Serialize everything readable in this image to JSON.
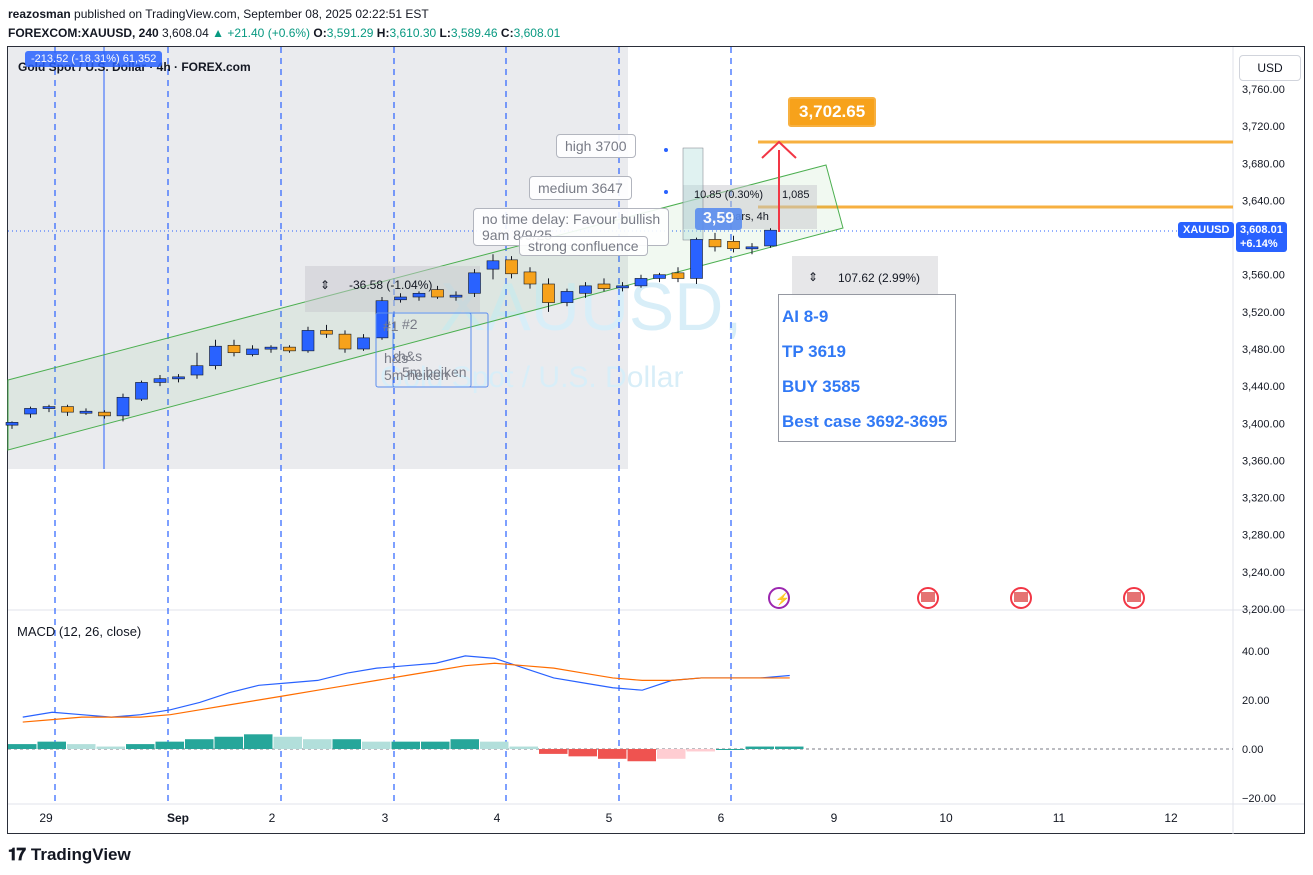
{
  "header": {
    "user": "reazosman",
    "published": "published on TradingView.com, September 08, 2025 02:22:51 EST",
    "symbol": "FOREXCOM:XAUUSD, 240",
    "price": "3,608.04",
    "change": "▲ +21.40 (+0.6%)",
    "o_label": "O:",
    "o": "3,591.29",
    "h_label": "H:",
    "h": "3,610.30",
    "l_label": "L:",
    "l": "3,589.46",
    "c_label": "C:",
    "c": "3,608.01"
  },
  "legend": {
    "title": "Gold Spot / U.S. Dollar · 4h · FOREX.com",
    "measure_label": "-213.52 (-18.31%) 61,352"
  },
  "watermark": {
    "symbol": "XAUUSD,",
    "name": "Gold Spot / U.S. Dollar"
  },
  "currency_button": "USD",
  "price_axis": {
    "ticks": [
      "3,760.00",
      "3,720.00",
      "3,680.00",
      "3,640.00",
      "3,600.00",
      "3,560.00",
      "3,520.00",
      "3,480.00",
      "3,440.00",
      "3,400.00",
      "3,360.00",
      "3,320.00",
      "3,280.00",
      "3,240.00",
      "3,200.00"
    ],
    "last_symbol": "XAUUSD",
    "last_price": "3,608.01",
    "last_change": "+6.14%"
  },
  "macd": {
    "label": "MACD (12, 26, close)",
    "ticks": [
      "40.00",
      "20.00",
      "0.00",
      "−20.00"
    ]
  },
  "time_axis": {
    "ticks": [
      "29",
      "Sep",
      "2",
      "3",
      "4",
      "5",
      "6",
      "9",
      "10",
      "11",
      "12"
    ]
  },
  "annotations": {
    "target_label": "3,702.65",
    "high_callout": "high 3700",
    "medium_callout": "medium 3647",
    "no_delay": "no time delay: Favour bullish",
    "time_note": "9am 8/9/25",
    "confluence": "strong confluence",
    "measure_small": "10.85 (0.30%)",
    "measure_small_2": "1,085",
    "bars_label": "1 bars, 4h",
    "price_badge": "3,59",
    "drop_measure": "-36.58 (-1.04%)",
    "range_measure": "107.62 (2.99%)",
    "mark1": "#1",
    "mark2": "#2",
    "hs1": "h&s",
    "hs2": "h&s",
    "heiken1": "5m heiken",
    "heiken2": "5m heiken"
  },
  "trade_note": {
    "line1": "AI 8-9",
    "line2": "TP 3619",
    "line3": "BUY 3585",
    "line4": "Best case 3692-3695"
  },
  "footer": {
    "brand": "TradingView"
  },
  "colors": {
    "bull": "#2962ff",
    "bear": "#f7a21b",
    "macd_line": "#2962ff",
    "signal_line": "#ff6d00",
    "hist_pos": "#26a69a",
    "hist_pos_light": "#b2dfdb",
    "hist_neg": "#ef5350",
    "hist_neg_light": "#ffcdd2",
    "target_line": "#f7b040",
    "channel": "#4caf50"
  },
  "chart_data": {
    "type": "candlestick",
    "symbol": "XAUUSD",
    "interval": "4h",
    "ylim": [
      3200,
      3770
    ],
    "candles": [
      {
        "o": 3398,
        "h": 3402,
        "l": 3394,
        "c": 3401
      },
      {
        "o": 3410,
        "h": 3418,
        "l": 3406,
        "c": 3416
      },
      {
        "o": 3416,
        "h": 3420,
        "l": 3412,
        "c": 3418
      },
      {
        "o": 3418,
        "h": 3420,
        "l": 3408,
        "c": 3412
      },
      {
        "o": 3412,
        "h": 3416,
        "l": 3409,
        "c": 3413
      },
      {
        "o": 3412,
        "h": 3414,
        "l": 3405,
        "c": 3408
      },
      {
        "o": 3408,
        "h": 3432,
        "l": 3402,
        "c": 3428
      },
      {
        "o": 3426,
        "h": 3446,
        "l": 3424,
        "c": 3444
      },
      {
        "o": 3444,
        "h": 3452,
        "l": 3440,
        "c": 3448
      },
      {
        "o": 3448,
        "h": 3453,
        "l": 3444,
        "c": 3450
      },
      {
        "o": 3452,
        "h": 3476,
        "l": 3448,
        "c": 3462
      },
      {
        "o": 3462,
        "h": 3490,
        "l": 3458,
        "c": 3483
      },
      {
        "o": 3484,
        "h": 3490,
        "l": 3472,
        "c": 3476
      },
      {
        "o": 3474,
        "h": 3484,
        "l": 3472,
        "c": 3480
      },
      {
        "o": 3480,
        "h": 3484,
        "l": 3476,
        "c": 3482
      },
      {
        "o": 3482,
        "h": 3484,
        "l": 3476,
        "c": 3478
      },
      {
        "o": 3478,
        "h": 3504,
        "l": 3476,
        "c": 3500
      },
      {
        "o": 3500,
        "h": 3506,
        "l": 3492,
        "c": 3496
      },
      {
        "o": 3496,
        "h": 3500,
        "l": 3476,
        "c": 3480
      },
      {
        "o": 3480,
        "h": 3496,
        "l": 3478,
        "c": 3492
      },
      {
        "o": 3492,
        "h": 3536,
        "l": 3490,
        "c": 3532
      },
      {
        "o": 3533,
        "h": 3540,
        "l": 3530,
        "c": 3536
      },
      {
        "o": 3536,
        "h": 3542,
        "l": 3532,
        "c": 3540
      },
      {
        "o": 3544,
        "h": 3548,
        "l": 3534,
        "c": 3536
      },
      {
        "o": 3536,
        "h": 3542,
        "l": 3532,
        "c": 3538
      },
      {
        "o": 3540,
        "h": 3566,
        "l": 3536,
        "c": 3562
      },
      {
        "o": 3566,
        "h": 3582,
        "l": 3555,
        "c": 3575
      },
      {
        "o": 3576,
        "h": 3580,
        "l": 3556,
        "c": 3561
      },
      {
        "o": 3563,
        "h": 3568,
        "l": 3545,
        "c": 3550
      },
      {
        "o": 3550,
        "h": 3556,
        "l": 3520,
        "c": 3530
      },
      {
        "o": 3530,
        "h": 3545,
        "l": 3526,
        "c": 3542
      },
      {
        "o": 3540,
        "h": 3552,
        "l": 3535,
        "c": 3548
      },
      {
        "o": 3550,
        "h": 3556,
        "l": 3542,
        "c": 3545
      },
      {
        "o": 3546,
        "h": 3552,
        "l": 3542,
        "c": 3548
      },
      {
        "o": 3548,
        "h": 3560,
        "l": 3546,
        "c": 3556
      },
      {
        "o": 3556,
        "h": 3562,
        "l": 3552,
        "c": 3560
      },
      {
        "o": 3562,
        "h": 3568,
        "l": 3552,
        "c": 3556
      },
      {
        "o": 3556,
        "h": 3600,
        "l": 3550,
        "c": 3598
      },
      {
        "o": 3598,
        "h": 3605,
        "l": 3585,
        "c": 3590
      },
      {
        "o": 3596,
        "h": 3602,
        "l": 3584,
        "c": 3588
      },
      {
        "o": 3588,
        "h": 3594,
        "l": 3582,
        "c": 3590
      },
      {
        "o": 3591,
        "h": 3610,
        "l": 3589,
        "c": 3608
      }
    ],
    "macd_line": [
      13,
      15,
      14,
      13,
      14,
      16,
      19,
      23,
      26,
      27,
      28,
      31,
      33,
      34,
      35,
      38,
      37,
      33,
      29,
      27,
      25,
      24,
      28,
      29,
      29,
      29,
      30
    ],
    "signal_line": [
      11,
      12,
      13,
      13,
      13,
      14,
      16,
      18,
      20,
      22,
      24,
      26,
      28,
      30,
      32,
      34,
      35,
      34,
      33,
      31,
      29,
      28,
      28,
      29,
      29,
      29,
      29
    ],
    "histogram": [
      2,
      3,
      2,
      1,
      2,
      3,
      4,
      5,
      6,
      5,
      4,
      4,
      3,
      3,
      3,
      4,
      3,
      1,
      -2,
      -3,
      -4,
      -5,
      -4,
      -1,
      0,
      1,
      1
    ]
  }
}
